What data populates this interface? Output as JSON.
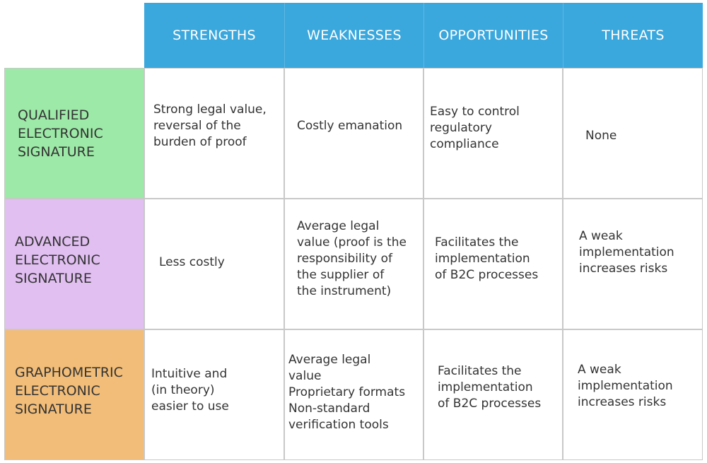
{
  "colors": {
    "header": "#3aa7dd",
    "qualified": "#9de9a7",
    "advanced": "#e1bff1",
    "graphometric": "#f2bd78"
  },
  "headers": [
    "STRENGTHS",
    "WEAKNESSES",
    "OPPORTUNITIES",
    "THREATS"
  ],
  "rows": [
    {
      "label": [
        "QUALIFIED",
        "ELECTRONIC",
        "SIGNATURE"
      ],
      "cells": [
        "Strong legal value,\nreversal of the\nburden of proof",
        "Costly emanation",
        "Easy to control\nregulatory\ncompliance",
        "None"
      ]
    },
    {
      "label": [
        "ADVANCED",
        "ELECTRONIC",
        "SIGNATURE"
      ],
      "cells": [
        "Less costly",
        "Average legal\nvalue (proof is the\nresponsibility of\nthe supplier of\nthe instrument)",
        "Facilitates  the\nimplementation\nof B2C processes",
        "A weak\nimplementation\nincreases risks"
      ]
    },
    {
      "label": [
        "GRAPHOMETRIC",
        "ELECTRONIC",
        "SIGNATURE"
      ],
      "cells": [
        "Intuitive and\n(in theory)\neasier to use",
        "Average legal\nvalue\nProprietary formats\nNon-standard\nverification tools",
        "Facilitates the\nimplementation\nof B2C processes",
        "A weak\nimplementation\nincreases risks"
      ]
    }
  ]
}
